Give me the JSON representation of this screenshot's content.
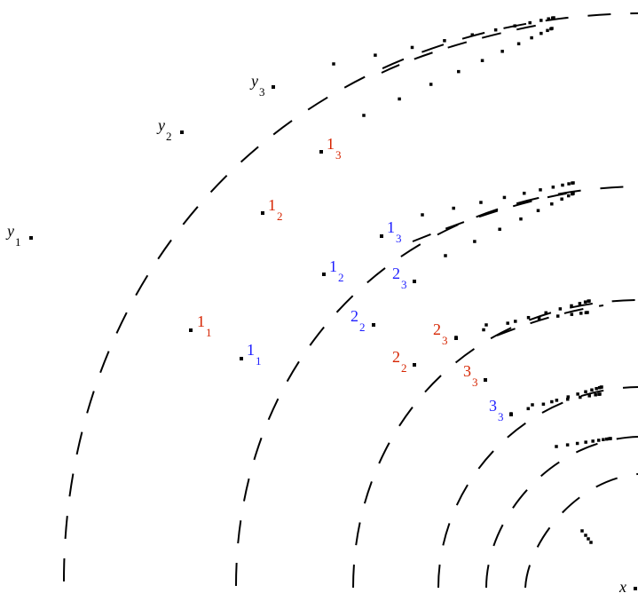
{
  "colors": {
    "ink": "#000000",
    "red": "#d62400",
    "blue": "#1d1dff"
  },
  "labels": {
    "x": {
      "main": "x",
      "sub": "",
      "color": "black",
      "italic": true
    },
    "y1": {
      "main": "y",
      "sub": "1",
      "color": "black",
      "italic": true
    },
    "y2": {
      "main": "y",
      "sub": "2",
      "color": "black",
      "italic": true
    },
    "y3": {
      "main": "y",
      "sub": "3",
      "color": "black",
      "italic": true
    },
    "r11": {
      "main": "1",
      "sub": "1",
      "color": "red"
    },
    "r12": {
      "main": "1",
      "sub": "2",
      "color": "red"
    },
    "r13": {
      "main": "1",
      "sub": "3",
      "color": "red"
    },
    "r22": {
      "main": "2",
      "sub": "2",
      "color": "red"
    },
    "r23": {
      "main": "2",
      "sub": "3",
      "color": "red"
    },
    "r33": {
      "main": "3",
      "sub": "3",
      "color": "red"
    },
    "b11": {
      "main": "1",
      "sub": "1",
      "color": "blue"
    },
    "b12": {
      "main": "1",
      "sub": "2",
      "color": "blue"
    },
    "b13": {
      "main": "1",
      "sub": "3",
      "color": "blue"
    },
    "b22": {
      "main": "2",
      "sub": "2",
      "color": "blue"
    },
    "b23": {
      "main": "2",
      "sub": "3",
      "color": "blue"
    },
    "b33": {
      "main": "3",
      "sub": "3",
      "color": "blue"
    }
  }
}
